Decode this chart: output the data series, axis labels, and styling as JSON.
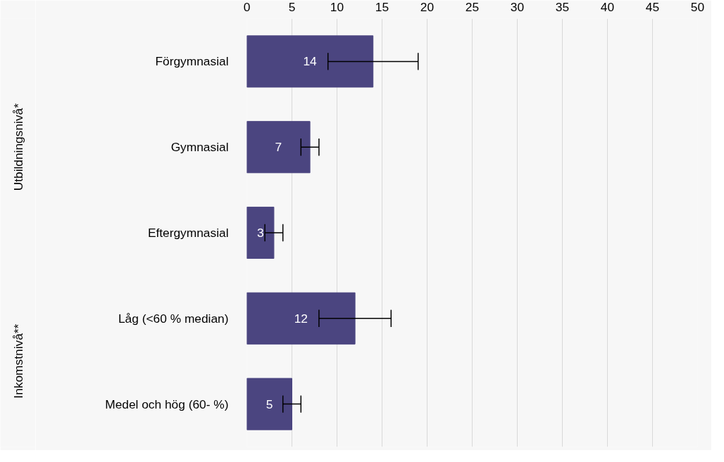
{
  "chart_data": {
    "type": "bar",
    "orientation": "horizontal",
    "categories": [
      "Förgymnasial",
      "Gymnasial",
      "Eftergymnasial",
      "Låg (<60 % median)",
      "Medel och hög (60- %)"
    ],
    "values": [
      14,
      7,
      3,
      12,
      5
    ],
    "errors": [
      [
        9,
        19
      ],
      [
        6,
        8
      ],
      [
        2,
        4
      ],
      [
        8,
        16
      ],
      [
        4,
        6
      ]
    ],
    "color": "#4b4580",
    "xlim": [
      0,
      50
    ],
    "xticks": [
      0,
      5,
      10,
      15,
      20,
      25,
      30,
      35,
      40,
      45,
      50
    ],
    "grid": "x",
    "data_labels": true,
    "annotations": [
      "Utbildningsnivå*",
      "Inkomstnivå**"
    ]
  }
}
